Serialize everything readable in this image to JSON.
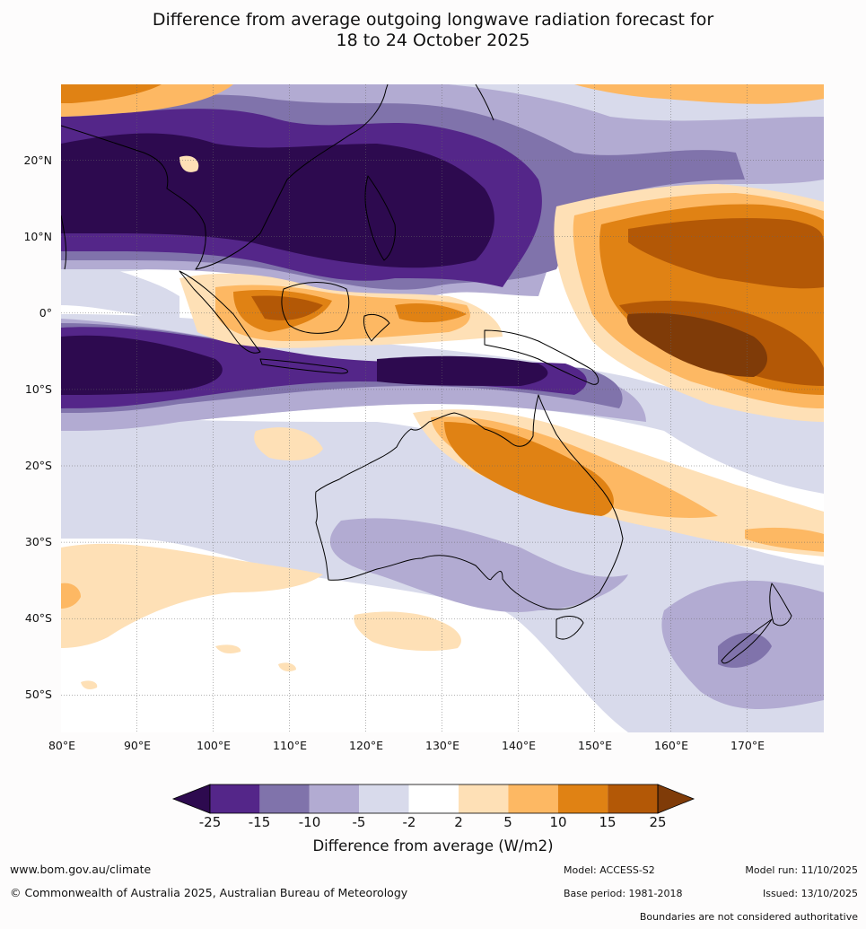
{
  "title": {
    "line1": "Difference from average outgoing longwave radiation forecast for",
    "line2": "18 to 24 October 2025"
  },
  "map": {
    "region": "Indo-Pacific and Australia",
    "lat_labels": [
      "20°N",
      "10°N",
      "0°",
      "10°S",
      "20°S",
      "30°S",
      "40°S",
      "50°S"
    ],
    "lon_labels": [
      "80°E",
      "90°E",
      "100°E",
      "110°E",
      "120°E",
      "130°E",
      "140°E",
      "150°E",
      "160°E",
      "170°E"
    ]
  },
  "colorbar": {
    "label": "Difference from average (W/m2)",
    "ticks": [
      "-25",
      "-15",
      "-10",
      "-5",
      "-2",
      "2",
      "5",
      "10",
      "15",
      "25"
    ],
    "colors": {
      "lt_-25": "#2d0a4f",
      "-25_-15": "#542689",
      "-15_-10": "#8073ab",
      "-10_-5": "#b2abd2",
      "-5_-2": "#d8daeb",
      "-2_2": "#ffffff",
      "2_5": "#fee0b6",
      "5_10": "#fdb863",
      "10_15": "#e08214",
      "15_25": "#b35806",
      "gt_25": "#7f3b08"
    }
  },
  "footer": {
    "website": "www.bom.gov.au/climate",
    "copyright": "© Commonwealth of Australia 2025, Australian Bureau of Meteorology",
    "model": "Model: ACCESS-S2",
    "base_period": "Base period: 1981-2018",
    "model_run": "Model run: 11/10/2025",
    "issued": "Issued: 13/10/2025",
    "disclaimer": "Boundaries are not considered authoritative"
  }
}
